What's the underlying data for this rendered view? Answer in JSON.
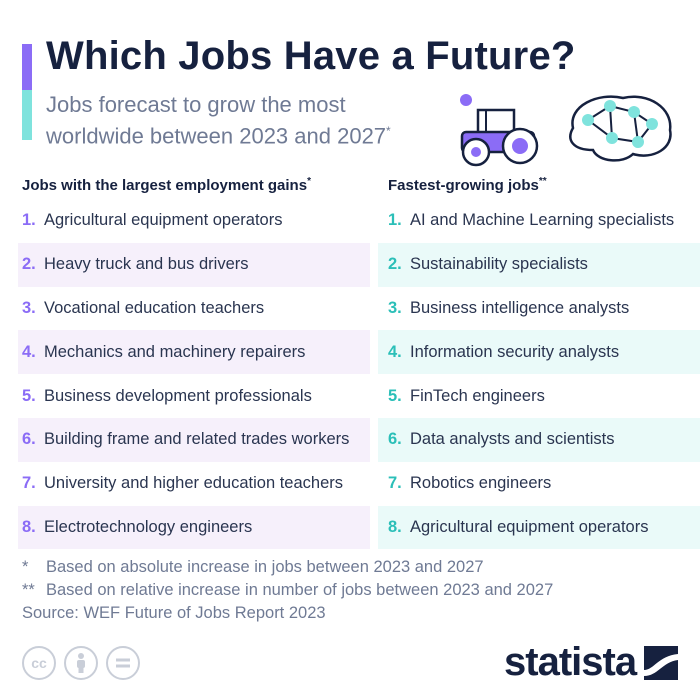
{
  "header": {
    "title": "Which Jobs Have a Future?",
    "subtitle_line1": "Jobs forecast to grow the most",
    "subtitle_line2": "worldwide between 2023 and 2027",
    "subtitle_mark": "*"
  },
  "left_column": {
    "heading": "Jobs with the largest employment gains",
    "heading_mark": "*",
    "items": [
      {
        "num": "1.",
        "label": "Agricultural equipment operators"
      },
      {
        "num": "2.",
        "label": "Heavy truck and bus drivers"
      },
      {
        "num": "3.",
        "label": "Vocational education teachers"
      },
      {
        "num": "4.",
        "label": "Mechanics and machinery repairers"
      },
      {
        "num": "5.",
        "label": "Business development professionals"
      },
      {
        "num": "6.",
        "label": "Building frame and related trades workers"
      },
      {
        "num": "7.",
        "label": "University and higher education teachers"
      },
      {
        "num": "8.",
        "label": "Electrotechnology engineers"
      }
    ]
  },
  "right_column": {
    "heading": "Fastest-growing jobs",
    "heading_mark": "**",
    "items": [
      {
        "num": "1.",
        "label": "AI and Machine Learning specialists"
      },
      {
        "num": "2.",
        "label": "Sustainability specialists"
      },
      {
        "num": "3.",
        "label": "Business intelligence analysts"
      },
      {
        "num": "4.",
        "label": "Information security analysts"
      },
      {
        "num": "5.",
        "label": "FinTech engineers"
      },
      {
        "num": "6.",
        "label": "Data analysts and scientists"
      },
      {
        "num": "7.",
        "label": "Robotics engineers"
      },
      {
        "num": "8.",
        "label": "Agricultural equipment operators"
      }
    ]
  },
  "notes": {
    "note1_mark": "*",
    "note1": "Based on absolute increase in jobs between 2023 and 2027",
    "note2_mark": "**",
    "note2": "Based on relative increase in number of jobs between 2023 and 2027",
    "source": "Source: WEF Future of Jobs Report 2023"
  },
  "footer": {
    "license_icons": [
      "cc-icon",
      "attribution-icon",
      "no-derivatives-icon"
    ],
    "cc_label": "cc",
    "brand": "statista"
  },
  "colors": {
    "accent_purple": "#8b6cf6",
    "accent_teal": "#7fe3dd",
    "navy": "#16213f"
  }
}
